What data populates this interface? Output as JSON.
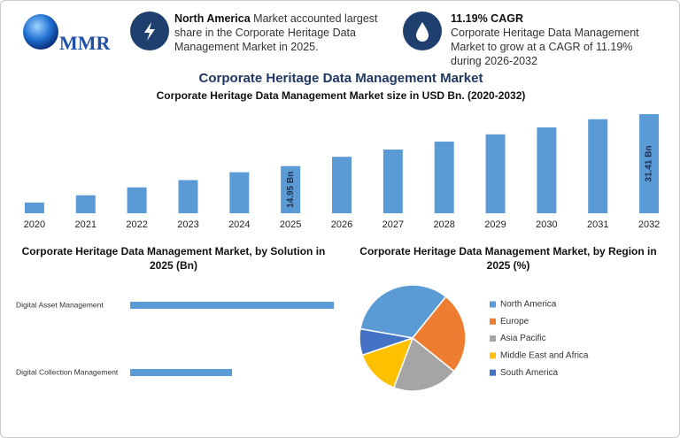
{
  "header": {
    "logo": "MMR",
    "cards": [
      {
        "heading": "North America",
        "text": "Market accounted largest share in the Corporate Heritage Data Management Market in 2025."
      },
      {
        "heading": "11.19% CAGR",
        "text": "Corporate Heritage Data Management Market to grow at a CAGR of 11.19% during 2026-2032"
      }
    ]
  },
  "chart_data": [
    {
      "type": "bar",
      "title": "Corporate Heritage Data Management Market",
      "subtitle": "Corporate Heritage Data Management Market size in USD Bn. (2020-2032)",
      "categories": [
        "2020",
        "2021",
        "2022",
        "2023",
        "2024",
        "2025",
        "2026",
        "2027",
        "2028",
        "2029",
        "2030",
        "2031",
        "2032"
      ],
      "values": [
        3.4,
        5.7,
        8.2,
        10.5,
        13.0,
        14.95,
        17.9,
        20.2,
        22.7,
        25.0,
        27.2,
        29.8,
        31.41
      ],
      "value_labels": [
        null,
        null,
        null,
        null,
        null,
        "14.95 Bn",
        null,
        null,
        null,
        null,
        null,
        null,
        "31.41 Bn"
      ],
      "color": "#5b9bd5"
    },
    {
      "type": "hbar",
      "title": "Corporate Heritage Data Management Market, by Solution in 2025 (Bn)",
      "categories": [
        "Digital Asset Management",
        "Digital Collection Management"
      ],
      "values": [
        10.0,
        5.0
      ],
      "color": "#5b9bd5"
    },
    {
      "type": "pie",
      "title": "Corporate Heritage Data Management Market, by Region in 2025 (%)",
      "categories": [
        "North America",
        "Europe",
        "Asia Pacific",
        "Middle East and Africa",
        "South America"
      ],
      "values": [
        33,
        25,
        20,
        14,
        8
      ],
      "colors": [
        "#5b9bd5",
        "#ed7d31",
        "#a5a5a5",
        "#ffc000",
        "#4472c4"
      ]
    }
  ]
}
